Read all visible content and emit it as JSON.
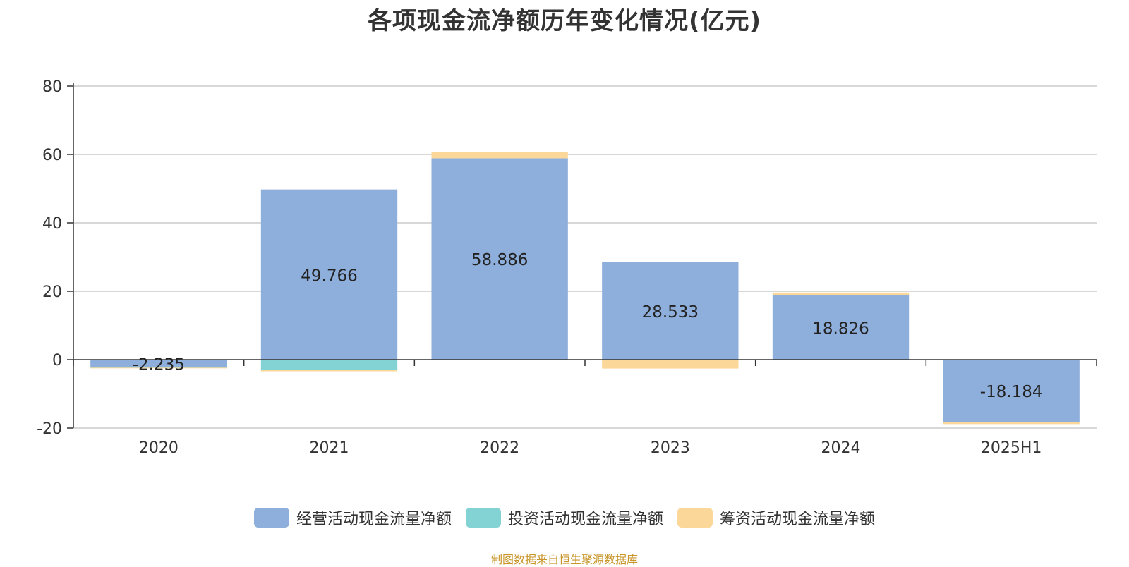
{
  "colors": {
    "operating": "#8eaedb",
    "investing": "#84d3d4",
    "financing": "#fcd79a",
    "axis": "#333333",
    "grid": "#cccccc",
    "source": "#c8962a"
  },
  "source_note": "制图数据来自恒生聚源数据库",
  "chart_data": {
    "type": "bar",
    "stacked": true,
    "title": "各项现金流净额历年变化情况(亿元)",
    "categories": [
      "2020",
      "2021",
      "2022",
      "2023",
      "2024",
      "2025H1"
    ],
    "ylim": [
      -20,
      80
    ],
    "yticks": [
      80,
      60,
      40,
      20,
      0,
      -20
    ],
    "grid": true,
    "legend_position": "bottom",
    "series": [
      {
        "name": "经营活动现金流量净额",
        "values": [
          -2.235,
          49.766,
          58.886,
          28.533,
          18.826,
          -18.184
        ],
        "labels": [
          "-2.235",
          "49.766",
          "58.886",
          "28.533",
          "18.826",
          "-18.184"
        ]
      },
      {
        "name": "投资活动现金流量净额",
        "values": [
          -0.1,
          -2.9,
          0,
          0,
          0,
          -0.05
        ]
      },
      {
        "name": "筹资活动现金流量净额",
        "values": [
          -0.2,
          -0.5,
          1.8,
          -2.6,
          0.8,
          -0.6
        ]
      }
    ]
  }
}
